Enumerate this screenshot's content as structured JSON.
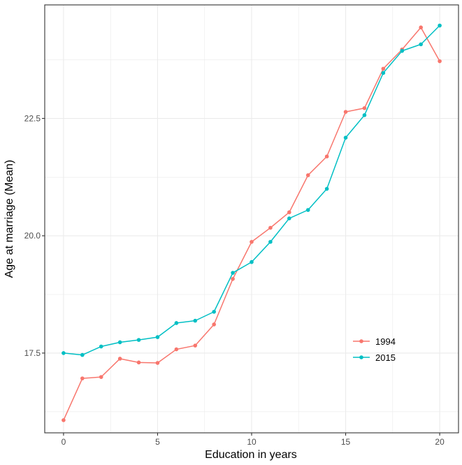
{
  "chart_data": {
    "type": "line",
    "title": "",
    "xlabel": "Education in years",
    "ylabel": "Age at marriage (Mean)",
    "xlim": [
      -1,
      21
    ],
    "ylim": [
      15.8,
      24.92
    ],
    "x_ticks": [
      0,
      5,
      10,
      15,
      20
    ],
    "x_tick_labels": [
      "0",
      "5",
      "10",
      "15",
      "20"
    ],
    "y_ticks": [
      17.5,
      20.0,
      22.5
    ],
    "y_tick_labels": [
      "17.5",
      "20.0",
      "22.5"
    ],
    "grid": true,
    "legend_position": "bottom-right",
    "x": [
      0,
      1,
      2,
      3,
      4,
      5,
      6,
      7,
      8,
      9,
      10,
      11,
      12,
      13,
      14,
      15,
      16,
      17,
      18,
      19,
      20
    ],
    "series": [
      {
        "name": "1994",
        "color": "#F8766D",
        "values": [
          16.07,
          16.96,
          16.99,
          17.38,
          17.3,
          17.29,
          17.58,
          17.66,
          18.11,
          19.08,
          19.87,
          20.17,
          20.5,
          21.29,
          21.69,
          22.64,
          22.72,
          23.56,
          23.97,
          24.44,
          23.72
        ]
      },
      {
        "name": "2015",
        "color": "#00BFC4",
        "values": [
          17.5,
          17.46,
          17.64,
          17.73,
          17.78,
          17.84,
          18.14,
          18.19,
          18.38,
          19.21,
          19.44,
          19.87,
          20.37,
          20.55,
          21.0,
          22.09,
          22.57,
          23.47,
          23.94,
          24.08,
          24.48
        ]
      }
    ]
  }
}
